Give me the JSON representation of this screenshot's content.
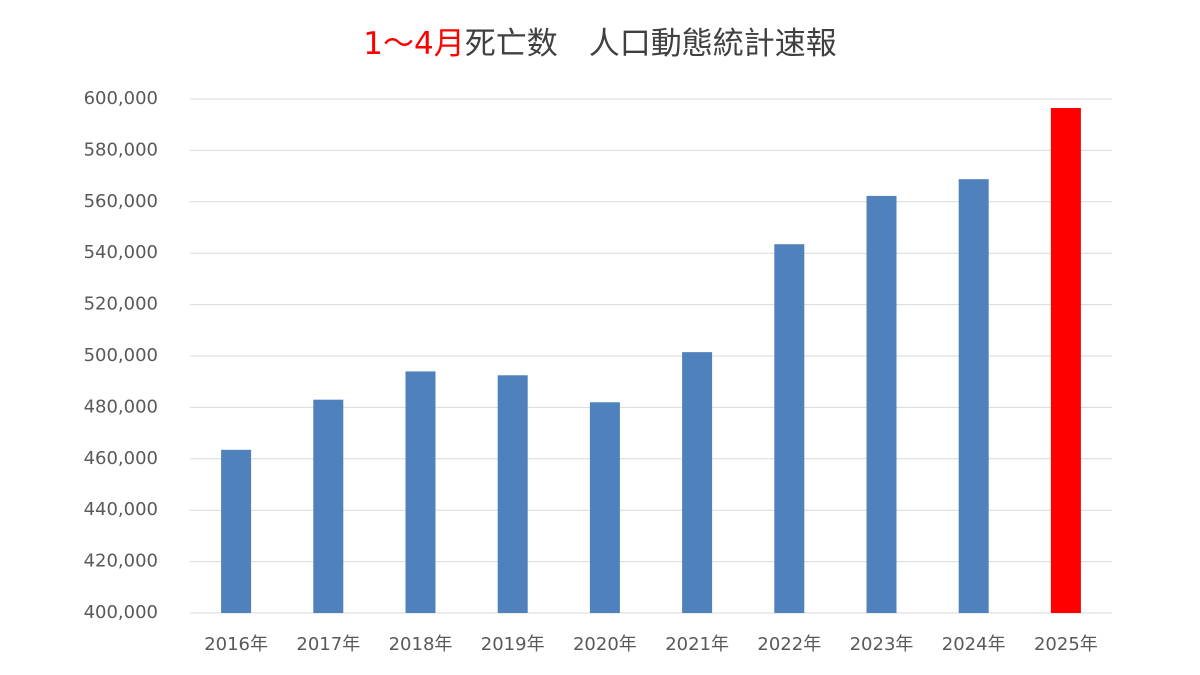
{
  "chart_data": {
    "type": "bar",
    "title_highlight": "1～4月",
    "title_highlight_color": "#ff0000",
    "title": "死亡数　人口動態統計速報",
    "categories": [
      "2016年",
      "2017年",
      "2018年",
      "2019年",
      "2020年",
      "2021年",
      "2022年",
      "2023年",
      "2024年",
      "2025年"
    ],
    "values": [
      463500,
      483000,
      494000,
      492500,
      482000,
      501500,
      543500,
      562300,
      568800,
      596500
    ],
    "colors": [
      "#4f81bd",
      "#4f81bd",
      "#4f81bd",
      "#4f81bd",
      "#4f81bd",
      "#4f81bd",
      "#4f81bd",
      "#4f81bd",
      "#4f81bd",
      "#ff0000"
    ],
    "ylim": [
      400000,
      600000
    ],
    "yticks": [
      {
        "value": 400000,
        "label": "400,000"
      },
      {
        "value": 420000,
        "label": "420,000"
      },
      {
        "value": 440000,
        "label": "440,000"
      },
      {
        "value": 460000,
        "label": "460,000"
      },
      {
        "value": 480000,
        "label": "480,000"
      },
      {
        "value": 500000,
        "label": "500,000"
      },
      {
        "value": 520000,
        "label": "520,000"
      },
      {
        "value": 540000,
        "label": "540,000"
      },
      {
        "value": 560000,
        "label": "560,000"
      },
      {
        "value": 580000,
        "label": "580,000"
      },
      {
        "value": 600000,
        "label": "600,000"
      }
    ],
    "grid": true
  }
}
